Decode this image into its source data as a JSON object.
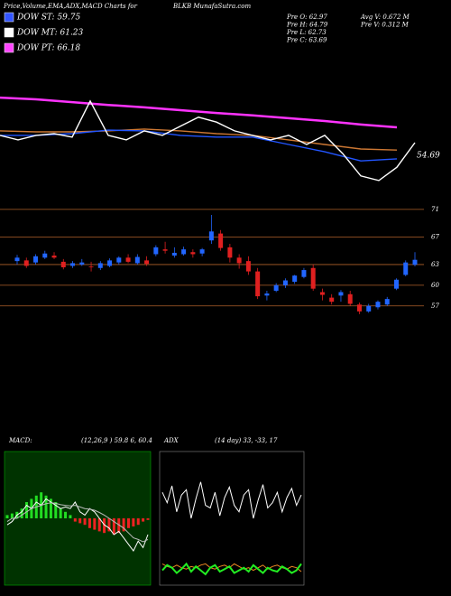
{
  "header": {
    "title": "Price,Volume,EMA,ADX,MACD Charts for",
    "site": "BLKB MunafaSutra.com",
    "legend": [
      {
        "label": "DOW ST: 59.75",
        "color": "#3355ff"
      },
      {
        "label": "DOW MT: 61.23",
        "color": "#ffffff"
      },
      {
        "label": "DOW PT: 66.18",
        "color": "#ff44ff"
      }
    ],
    "info": [
      "Pre O: 62.97",
      "Pre H: 64.79",
      "Pre L: 62.73",
      "Pre C: 63.69",
      "Avg V: 0.672 M",
      "Pre V: 0.312 M"
    ]
  },
  "chart_data": [
    {
      "type": "line",
      "annotation": "54.69",
      "xlim": [
        0,
        23
      ],
      "ylim": [
        40,
        80
      ],
      "series": [
        {
          "color": "#ff33ff",
          "x": [
            0,
            2,
            4,
            6,
            8,
            10,
            12,
            14,
            16,
            18,
            20,
            22
          ],
          "values": [
            67.6,
            67.1,
            66.3,
            65.5,
            64.8,
            64,
            63.2,
            62.5,
            61.7,
            60.9,
            59.9,
            59.1
          ]
        },
        {
          "color": "#cc7733",
          "x": [
            0,
            2,
            4,
            6,
            8,
            10,
            12,
            14,
            16,
            18,
            20,
            22
          ],
          "values": [
            58.1,
            57.8,
            57.8,
            58.1,
            58.6,
            58.1,
            57.3,
            56.8,
            55.5,
            54.2,
            52.9,
            52.6
          ]
        },
        {
          "color": "#2255ff",
          "x": [
            0,
            2,
            4,
            6,
            8,
            10,
            12,
            14,
            16,
            18,
            20,
            22
          ],
          "values": [
            56.8,
            56.8,
            57.3,
            58.3,
            58.1,
            56.8,
            56.3,
            56.3,
            54.2,
            52.1,
            49.5,
            50.1
          ]
        },
        {
          "color": "#ffffff",
          "x": [
            0,
            1,
            2,
            3,
            4,
            5,
            6,
            7,
            8,
            9,
            10,
            11,
            12,
            13,
            14,
            15,
            16,
            17,
            18,
            19,
            20,
            21,
            22,
            23
          ],
          "values": [
            56.8,
            55.5,
            56.8,
            57.3,
            56.3,
            66.6,
            56.8,
            55.5,
            58.1,
            56.8,
            59.4,
            62,
            60.6,
            58.1,
            56.8,
            55.5,
            56.8,
            54.2,
            56.8,
            51.6,
            45.2,
            43.9,
            47.7,
            54.7
          ]
        }
      ]
    },
    {
      "type": "candlestick",
      "ylim": [
        38.5,
        71.9
      ],
      "yticks": [
        71,
        67,
        63,
        60,
        57
      ],
      "up_color": "#2266ff",
      "down_color": "#e02020",
      "open": [
        63.5,
        63.6,
        63.3,
        64,
        64.3,
        63.4,
        62.8,
        63,
        62.7,
        62.5,
        62.8,
        63.3,
        64,
        63.2,
        63.6,
        64.5,
        65.2,
        64.3,
        64.5,
        64.8,
        64.6,
        66.5,
        67.5,
        65.5,
        64,
        63.5,
        62,
        58.5,
        59.2,
        60,
        60.5,
        61.2,
        62.5,
        59,
        58.2,
        58.5,
        58.7,
        57.2,
        56.2,
        56.8,
        57.2,
        59.5,
        61.5,
        62.97
      ],
      "high": [
        64.4,
        64,
        64.5,
        65,
        64.8,
        63.8,
        63.5,
        63.8,
        63.4,
        63.5,
        63.9,
        64.2,
        64.5,
        64.5,
        64.2,
        65.8,
        66.3,
        65.5,
        65.6,
        65.2,
        65.4,
        70.2,
        68,
        66,
        64.5,
        64.2,
        62.5,
        59.2,
        60.3,
        61,
        61.5,
        62.5,
        63,
        59.5,
        58.7,
        59.3,
        59.2,
        57.5,
        57.3,
        57.8,
        58.3,
        61,
        63.6,
        64.79
      ],
      "low": [
        63,
        62.5,
        63,
        63.8,
        63.8,
        62.3,
        62.5,
        62.8,
        62,
        62.2,
        62.6,
        63,
        63.2,
        63,
        62.8,
        64.2,
        64.6,
        64,
        64.3,
        64,
        64.2,
        66,
        65,
        63.3,
        62.4,
        61.5,
        58,
        57.8,
        59,
        59.6,
        60.2,
        61,
        59.2,
        57.8,
        57.2,
        57.6,
        57,
        55.8,
        56,
        56.5,
        57,
        59.3,
        61.3,
        62.73
      ],
      "close": [
        64,
        62.8,
        64.2,
        64.6,
        64,
        62.6,
        63.2,
        63.3,
        62.6,
        63.2,
        63.6,
        64,
        63.4,
        64.1,
        63.1,
        65.5,
        65,
        64.7,
        65.2,
        64.5,
        65.2,
        67.8,
        65.4,
        64,
        63.2,
        62,
        58.4,
        58.8,
        60,
        60.7,
        61.4,
        62.2,
        59.5,
        58.6,
        57.6,
        59,
        57.3,
        56.2,
        57,
        57.6,
        58,
        60.8,
        63.3,
        63.69
      ]
    },
    {
      "type": "macd",
      "title": "MACD:",
      "subtitle": "(12,26,9 ) 59.8 6, 60.4",
      "ylim": [
        -2,
        2
      ],
      "pos_color": "#22dd22",
      "neg_color": "#ee2222",
      "histogram": [
        0.1,
        0.15,
        0.2,
        0.3,
        0.5,
        0.6,
        0.7,
        0.8,
        0.7,
        0.6,
        0.5,
        0.3,
        0.2,
        0.1,
        -0.1,
        -0.15,
        -0.2,
        -0.3,
        -0.35,
        -0.4,
        -0.45,
        -0.4,
        -0.5,
        -0.45,
        -0.4,
        -0.3,
        -0.25,
        -0.2,
        -0.1,
        -0.05
      ],
      "series": [
        {
          "color": "#ffffff",
          "values": [
            -0.2,
            -0.1,
            0.1,
            0.2,
            0.4,
            0.3,
            0.5,
            0.4,
            0.6,
            0.5,
            0.4,
            0.3,
            0.35,
            0.3,
            0.5,
            0.2,
            0.1,
            0.3,
            0.2,
            0,
            -0.2,
            -0.3,
            -0.5,
            -0.4,
            -0.6,
            -0.8,
            -1,
            -0.7,
            -0.9,
            -0.5
          ]
        },
        {
          "color": "#bbbbbb",
          "values": [
            -0.1,
            0,
            0,
            0.1,
            0.2,
            0.3,
            0.35,
            0.4,
            0.45,
            0.48,
            0.46,
            0.42,
            0.4,
            0.38,
            0.4,
            0.35,
            0.3,
            0.28,
            0.25,
            0.18,
            0.1,
            0,
            -0.1,
            -0.2,
            -0.3,
            -0.45,
            -0.6,
            -0.65,
            -0.72,
            -0.65
          ]
        }
      ]
    },
    {
      "type": "adx",
      "title": "ADX",
      "subtitle": "(14 day) 33, -33, 17",
      "ylim": [
        0,
        100
      ],
      "series": [
        {
          "color": "#ffffff",
          "values": [
            70,
            62,
            75,
            55,
            68,
            72,
            50,
            65,
            78,
            60,
            58,
            70,
            52,
            66,
            74,
            60,
            55,
            68,
            72,
            50,
            64,
            76,
            58,
            62,
            70,
            55,
            66,
            73,
            60,
            68
          ]
        },
        {
          "color": "#ee8822",
          "values": [
            15,
            13,
            12,
            14,
            12,
            11,
            13,
            12,
            14,
            15,
            12,
            11,
            13,
            14,
            12,
            15,
            13,
            11,
            12,
            10,
            12,
            14,
            11,
            13,
            14,
            12,
            11,
            13,
            12,
            9
          ]
        },
        {
          "color": "#22ee22",
          "values": [
            10,
            14,
            12,
            8,
            11,
            15,
            9,
            13,
            10,
            7,
            12,
            14,
            9,
            11,
            13,
            8,
            10,
            12,
            9,
            14,
            11,
            8,
            12,
            10,
            9,
            13,
            11,
            8,
            10,
            15
          ]
        }
      ]
    }
  ]
}
